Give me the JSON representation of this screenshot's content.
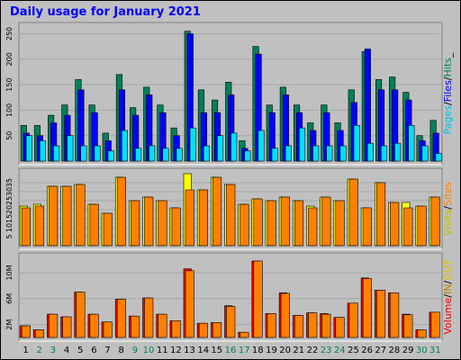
{
  "title": "Daily usage for January 2021",
  "colors": {
    "background": "#c0c0c0",
    "title": "#0000ff",
    "hits": "#00805c",
    "files": "#0000ff",
    "pages": "#00e0ff",
    "visits": "#ffff00",
    "sites": "#ff8000",
    "volume": "#ff0000",
    "in": "#ff8000",
    "out": "#ffc000",
    "weekday_label": "#000000",
    "weekend_label": "#00805c"
  },
  "panel_labels": {
    "top": [
      {
        "text": "Pages",
        "color": "#00c0e0"
      },
      {
        "text": "/",
        "color": "#000000"
      },
      {
        "text": "Files",
        "color": "#0000ff"
      },
      {
        "text": "/",
        "color": "#000000"
      },
      {
        "text": "Hits",
        "color": "#00805c"
      },
      {
        "text": "_",
        "color": "#000000"
      }
    ],
    "middle": [
      {
        "text": "Visits",
        "color": "#c0c000"
      },
      {
        "text": "/",
        "color": "#000000"
      },
      {
        "text": "Sites",
        "color": "#ff8000"
      }
    ],
    "bottom": [
      {
        "text": "Volume",
        "color": "#ff0000"
      },
      {
        "text": "/",
        "color": "#000000"
      },
      {
        "text": "IN",
        "color": "#c08000"
      },
      {
        "text": "/",
        "color": "#000000"
      },
      {
        "text": "OUT",
        "color": "#e0c000"
      }
    ]
  },
  "chart_data": [
    {
      "type": "bar",
      "panel": "top",
      "categories": [
        "1",
        "2",
        "3",
        "4",
        "5",
        "6",
        "7",
        "8",
        "9",
        "10",
        "11",
        "12",
        "13",
        "14",
        "15",
        "16",
        "17",
        "18",
        "19",
        "20",
        "21",
        "22",
        "23",
        "24",
        "25",
        "26",
        "27",
        "28",
        "29",
        "30",
        "31"
      ],
      "weekend_days": [
        "2",
        "3",
        "9",
        "10",
        "16",
        "17",
        "23",
        "24",
        "30",
        "31"
      ],
      "yticks": [
        "50",
        "100",
        "150",
        "200",
        "250"
      ],
      "ylim": [
        0,
        265
      ],
      "series": [
        {
          "name": "Hits",
          "values": [
            70,
            70,
            90,
            110,
            160,
            110,
            55,
            170,
            105,
            145,
            110,
            65,
            255,
            140,
            120,
            155,
            40,
            225,
            110,
            145,
            110,
            75,
            110,
            75,
            140,
            215,
            160,
            165,
            135,
            50,
            80
          ]
        },
        {
          "name": "Files",
          "values": [
            55,
            50,
            75,
            90,
            140,
            95,
            40,
            140,
            90,
            130,
            95,
            50,
            250,
            95,
            95,
            130,
            25,
            210,
            95,
            130,
            95,
            60,
            95,
            60,
            115,
            220,
            140,
            140,
            120,
            40,
            55
          ]
        },
        {
          "name": "Pages",
          "values": [
            50,
            40,
            30,
            50,
            30,
            30,
            20,
            60,
            25,
            30,
            25,
            25,
            65,
            30,
            50,
            55,
            20,
            60,
            25,
            30,
            65,
            30,
            30,
            30,
            70,
            35,
            30,
            35,
            70,
            30,
            15
          ]
        }
      ]
    },
    {
      "type": "bar",
      "panel": "middle",
      "categories": [
        "1",
        "2",
        "3",
        "4",
        "5",
        "6",
        "7",
        "8",
        "9",
        "10",
        "11",
        "12",
        "13",
        "14",
        "15",
        "16",
        "17",
        "18",
        "19",
        "20",
        "21",
        "22",
        "23",
        "24",
        "25",
        "26",
        "27",
        "28",
        "29",
        "30",
        "31"
      ],
      "yticks": [
        "5",
        "10",
        "15",
        "20",
        "25",
        "30",
        "35"
      ],
      "ylim": [
        0,
        41
      ],
      "series": [
        {
          "name": "Visits",
          "values": [
            22,
            23,
            33,
            33,
            34,
            23,
            18,
            38,
            25,
            27,
            25,
            21,
            40,
            31,
            38,
            34,
            23,
            26,
            25,
            27,
            25,
            22,
            27,
            25,
            37,
            21,
            35,
            24,
            24,
            22,
            27
          ]
        },
        {
          "name": "Sites",
          "values": [
            21,
            22,
            33,
            33,
            34,
            23,
            18,
            38,
            25,
            27,
            25,
            21,
            31,
            31,
            38,
            34,
            23,
            26,
            25,
            27,
            25,
            21,
            27,
            25,
            37,
            21,
            35,
            24,
            21,
            22,
            27
          ]
        }
      ]
    },
    {
      "type": "bar",
      "panel": "bottom",
      "categories": [
        "1",
        "2",
        "3",
        "4",
        "5",
        "6",
        "7",
        "8",
        "9",
        "10",
        "11",
        "12",
        "13",
        "14",
        "15",
        "16",
        "17",
        "18",
        "19",
        "20",
        "21",
        "22",
        "23",
        "24",
        "25",
        "26",
        "27",
        "28",
        "29",
        "30",
        "31"
      ],
      "yticks": [
        "2M",
        "6M",
        "10M"
      ],
      "ylim": [
        0,
        12500000
      ],
      "series": [
        {
          "name": "Volume",
          "values": [
            1800000,
            1200000,
            3600000,
            3200000,
            7000000,
            3600000,
            2400000,
            5900000,
            3300000,
            6100000,
            3600000,
            2600000,
            10600000,
            2200000,
            2300000,
            4900000,
            800000,
            11800000,
            3700000,
            6900000,
            3400000,
            3800000,
            3700000,
            3100000,
            5300000,
            9200000,
            7300000,
            6900000,
            3600000,
            1200000,
            3900000
          ]
        },
        {
          "name": "IN",
          "values": [
            1800000,
            1200000,
            3600000,
            3200000,
            7000000,
            3600000,
            2400000,
            5900000,
            3300000,
            6100000,
            3600000,
            2600000,
            10300000,
            2200000,
            2300000,
            4800000,
            800000,
            11800000,
            3700000,
            6800000,
            3400000,
            3800000,
            3600000,
            3100000,
            5300000,
            9100000,
            7300000,
            6900000,
            3500000,
            1200000,
            3900000
          ]
        }
      ]
    }
  ]
}
